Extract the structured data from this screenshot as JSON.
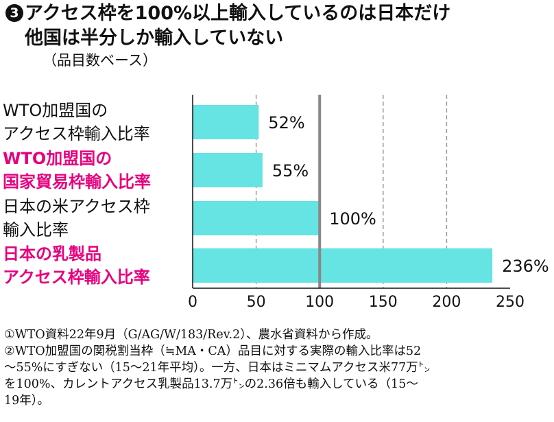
{
  "title": {
    "number": "3",
    "line1": "アクセス枠を100%以上輸入しているのは日本だけ",
    "line2": "他国は半分しか輸入していない"
  },
  "subtitle": "（品目数ベース）",
  "colors": {
    "bar": "#66e3e3",
    "highlight_label": "#e6007e",
    "reference_line": "#888888",
    "grid_line": "#999999",
    "axis": "#111111"
  },
  "chart_data": {
    "type": "bar",
    "orientation": "horizontal",
    "categories": [
      [
        "WTO加盟国の",
        "アクセス枠輸入比率"
      ],
      [
        "WTO加盟国の",
        "国家貿易枠輸入比率"
      ],
      [
        "日本の米アクセス枠",
        "輸入比率"
      ],
      [
        "日本の乳製品",
        "アクセス枠輸入比率"
      ]
    ],
    "category_highlight": [
      false,
      true,
      false,
      true
    ],
    "values": [
      52,
      55,
      100,
      236
    ],
    "value_labels": [
      "52%",
      "55%",
      "100%",
      "236%"
    ],
    "xlim": [
      0,
      250
    ],
    "xticks": [
      0,
      50,
      100,
      150,
      200,
      250
    ],
    "xtick_labels": [
      "0",
      "50",
      "100",
      "150",
      "200",
      "250"
    ],
    "reference_line": 100,
    "grid": "dashed vertical lines at 50, 150, 200"
  },
  "footnotes": [
    "①WTO資料22年9月（G/AG/W/183/Rev.2）、農水省資料から作成。",
    "②WTO加盟国の関税割当枠（≒MA・CA）品目に対する実際の輸入比率は52",
    "〜55%にすぎない（15〜21年平均）。一方、日本はミニマムアクセス米77万㌧",
    "を100%、カレントアクセス乳製品13.7万㌧の2.36倍も輸入している（15〜",
    "19年）。"
  ]
}
